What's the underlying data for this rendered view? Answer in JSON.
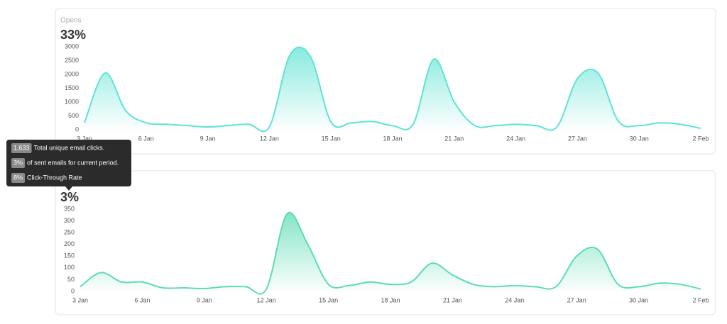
{
  "chart_data": [
    {
      "type": "area",
      "title": "Opens",
      "headline": "33%",
      "color": "#5fe3d3",
      "categories": [
        "3 Jan",
        null,
        null,
        "6 Jan",
        null,
        null,
        "9 Jan",
        null,
        null,
        "12 Jan",
        null,
        null,
        "15 Jan",
        null,
        null,
        "18 Jan",
        null,
        null,
        "21 Jan",
        null,
        null,
        "24 Jan",
        null,
        null,
        "27 Jan",
        null,
        null,
        "30 Jan",
        null,
        null,
        "2 Feb"
      ],
      "values": [
        250,
        2050,
        700,
        250,
        200,
        150,
        100,
        150,
        200,
        100,
        2700,
        2650,
        280,
        250,
        300,
        150,
        200,
        2550,
        1000,
        150,
        150,
        200,
        150,
        100,
        1850,
        2050,
        300,
        150,
        250,
        200,
        50
      ],
      "ylim": [
        0,
        3000
      ],
      "yticks": [
        0,
        500,
        1000,
        1500,
        2000,
        2500,
        3000
      ]
    },
    {
      "type": "area",
      "headline": "3%",
      "color": "#5cdcb4",
      "categories": [
        "3 Jan",
        null,
        null,
        "6 Jan",
        null,
        null,
        "9 Jan",
        null,
        null,
        "12 Jan",
        null,
        null,
        "15 Jan",
        null,
        null,
        "18 Jan",
        null,
        null,
        "21 Jan",
        null,
        null,
        "24 Jan",
        null,
        null,
        "27 Jan",
        null,
        null,
        "30 Jan",
        null,
        null,
        "2 Feb"
      ],
      "values": [
        20,
        80,
        40,
        40,
        15,
        15,
        12,
        20,
        20,
        10,
        330,
        200,
        30,
        25,
        40,
        30,
        40,
        120,
        70,
        30,
        20,
        25,
        20,
        20,
        150,
        180,
        30,
        20,
        35,
        30,
        10
      ],
      "ylim": [
        0,
        350
      ],
      "yticks": [
        0,
        50,
        100,
        150,
        200,
        250,
        300,
        350
      ]
    }
  ],
  "tooltip": {
    "rows": [
      {
        "badge": "1,633",
        "text": "Total unique email clicks."
      },
      {
        "badge": "3%",
        "text": "of sent emails for current period."
      },
      {
        "badge": "8%",
        "text": "Click-Through Rate"
      }
    ]
  }
}
